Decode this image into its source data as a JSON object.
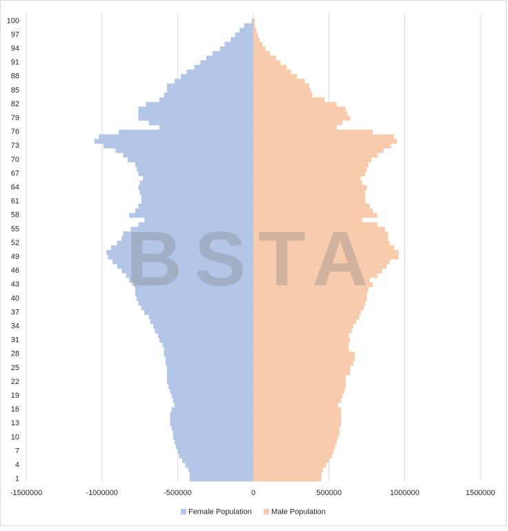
{
  "chart_data": {
    "type": "population-pyramid",
    "watermark": "BSTA",
    "categories": [
      1,
      null,
      null,
      4,
      null,
      null,
      7,
      null,
      null,
      10,
      null,
      null,
      13,
      null,
      null,
      16,
      null,
      null,
      19,
      null,
      null,
      22,
      null,
      null,
      25,
      null,
      null,
      28,
      null,
      null,
      31,
      null,
      null,
      34,
      null,
      null,
      37,
      null,
      null,
      40,
      null,
      null,
      43,
      null,
      null,
      46,
      null,
      null,
      49,
      null,
      null,
      52,
      null,
      null,
      55,
      null,
      null,
      58,
      null,
      null,
      61,
      null,
      null,
      64,
      null,
      null,
      67,
      null,
      null,
      70,
      null,
      null,
      73,
      null,
      null,
      76,
      null,
      null,
      79,
      null,
      null,
      82,
      null,
      null,
      85,
      null,
      null,
      88,
      null,
      null,
      91,
      null,
      null,
      94,
      null,
      null,
      97,
      null,
      null,
      100
    ],
    "series": [
      {
        "name": "Female Population",
        "color": "#b4c6e7",
        "values": [
          -420000,
          -420000,
          -430000,
          -450000,
          -470000,
          -490000,
          -500000,
          -510000,
          -520000,
          -530000,
          -530000,
          -540000,
          -550000,
          -550000,
          -550000,
          -540000,
          -520000,
          -530000,
          -540000,
          -550000,
          -560000,
          -570000,
          -570000,
          -570000,
          -570000,
          -580000,
          -580000,
          -590000,
          -590000,
          -600000,
          -620000,
          -630000,
          -650000,
          -660000,
          -680000,
          -690000,
          -720000,
          -740000,
          -760000,
          -770000,
          -780000,
          -780000,
          -790000,
          -820000,
          -840000,
          -870000,
          -900000,
          -930000,
          -960000,
          -970000,
          -940000,
          -900000,
          -870000,
          -860000,
          -810000,
          -760000,
          -720000,
          -820000,
          -780000,
          -760000,
          -740000,
          -740000,
          -750000,
          -760000,
          -750000,
          -730000,
          -760000,
          -770000,
          -780000,
          -830000,
          -860000,
          -910000,
          -990000,
          -1050000,
          -1020000,
          -890000,
          -620000,
          -690000,
          -760000,
          -760000,
          -760000,
          -710000,
          -620000,
          -590000,
          -570000,
          -570000,
          -520000,
          -480000,
          -440000,
          -390000,
          -350000,
          -310000,
          -270000,
          -220000,
          -190000,
          -150000,
          -120000,
          -90000,
          -60000,
          -10000
        ]
      },
      {
        "name": "Male Population",
        "color": "#f8cbad",
        "values": [
          450000,
          450000,
          460000,
          480000,
          500000,
          520000,
          530000,
          540000,
          550000,
          560000,
          570000,
          570000,
          580000,
          580000,
          580000,
          580000,
          560000,
          580000,
          590000,
          600000,
          610000,
          610000,
          610000,
          640000,
          640000,
          660000,
          670000,
          670000,
          630000,
          630000,
          640000,
          630000,
          650000,
          660000,
          680000,
          700000,
          710000,
          730000,
          740000,
          750000,
          750000,
          760000,
          790000,
          770000,
          820000,
          850000,
          880000,
          900000,
          960000,
          960000,
          930000,
          900000,
          890000,
          890000,
          870000,
          820000,
          720000,
          820000,
          790000,
          770000,
          740000,
          740000,
          740000,
          750000,
          720000,
          710000,
          740000,
          750000,
          760000,
          780000,
          820000,
          860000,
          910000,
          950000,
          930000,
          790000,
          550000,
          590000,
          640000,
          620000,
          610000,
          550000,
          470000,
          390000,
          380000,
          370000,
          340000,
          290000,
          250000,
          220000,
          180000,
          150000,
          110000,
          80000,
          60000,
          40000,
          30000,
          20000,
          10000,
          10000
        ]
      }
    ],
    "xlim": [
      -1500000,
      1500000
    ],
    "xticks": [
      -1500000,
      -1000000,
      -500000,
      0,
      500000,
      1000000,
      1500000
    ],
    "grid": true
  }
}
